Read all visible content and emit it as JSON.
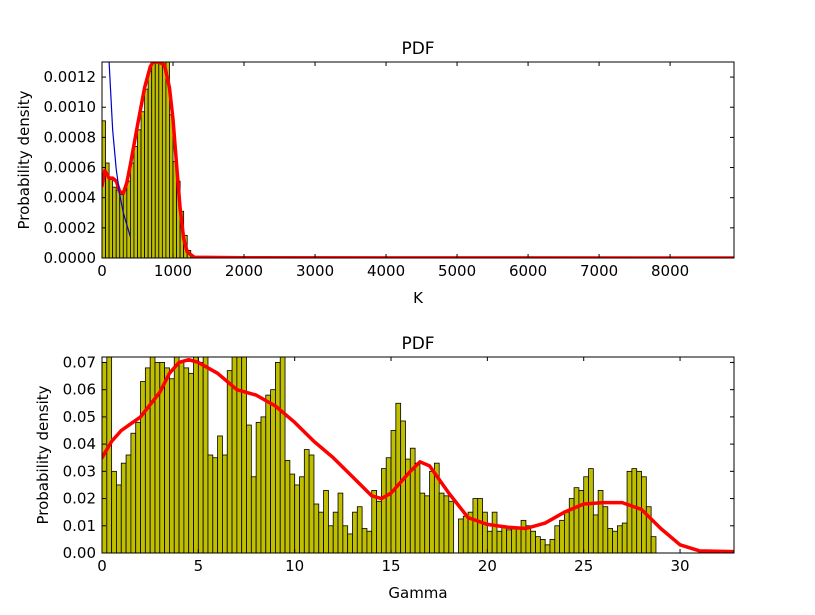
{
  "chart_data": [
    {
      "type": "bar",
      "title": "PDF",
      "xlabel": "K",
      "ylabel": "Probability density",
      "xlim": [
        0,
        8900
      ],
      "ylim": [
        0,
        0.0013
      ],
      "grid": false,
      "xticks": [
        "0",
        "1000",
        "2000",
        "3000",
        "4000",
        "5000",
        "6000",
        "7000",
        "8000"
      ],
      "yticks": [
        "0.0000",
        "0.0002",
        "0.0004",
        "0.0006",
        "0.0008",
        "0.0010",
        "0.0012"
      ],
      "bin_width": 50,
      "bar_color": "#bfbf00",
      "histogram": [
        {
          "x": 0,
          "v": 0.00091
        },
        {
          "x": 50,
          "v": 0.00063
        },
        {
          "x": 100,
          "v": 0.00052
        },
        {
          "x": 150,
          "v": 0.00047
        },
        {
          "x": 200,
          "v": 0.00045
        },
        {
          "x": 250,
          "v": 0.00042
        },
        {
          "x": 300,
          "v": 0.00045
        },
        {
          "x": 350,
          "v": 0.00051
        },
        {
          "x": 400,
          "v": 0.00063
        },
        {
          "x": 450,
          "v": 0.00074
        },
        {
          "x": 500,
          "v": 0.00085
        },
        {
          "x": 550,
          "v": 0.00097
        },
        {
          "x": 600,
          "v": 0.00112
        },
        {
          "x": 650,
          "v": 0.00124
        },
        {
          "x": 700,
          "v": 0.0013
        },
        {
          "x": 750,
          "v": 0.0013
        },
        {
          "x": 800,
          "v": 0.0013
        },
        {
          "x": 850,
          "v": 0.0013
        },
        {
          "x": 900,
          "v": 0.0013
        },
        {
          "x": 950,
          "v": 0.00095
        },
        {
          "x": 1000,
          "v": 0.00064
        },
        {
          "x": 1050,
          "v": 0.00051
        },
        {
          "x": 1100,
          "v": 0.00031
        },
        {
          "x": 1150,
          "v": 0.00015
        },
        {
          "x": 1200,
          "v": 5e-05
        },
        {
          "x": 1250,
          "v": 1e-05
        }
      ],
      "series": [
        {
          "color": "#ff0000",
          "points": [
            [
              0,
              0.00048
            ],
            [
              40,
              0.00058
            ],
            [
              100,
              0.00053
            ],
            [
              150,
              0.00053
            ],
            [
              200,
              0.00051
            ],
            [
              250,
              0.00044
            ],
            [
              300,
              0.00043
            ],
            [
              350,
              0.0005
            ],
            [
              400,
              0.00062
            ],
            [
              500,
              0.00088
            ],
            [
              600,
              0.00113
            ],
            [
              680,
              0.00127
            ],
            [
              720,
              0.0013
            ],
            [
              800,
              0.0013
            ],
            [
              880,
              0.00128
            ],
            [
              950,
              0.00113
            ],
            [
              1000,
              0.00092
            ],
            [
              1050,
              0.00062
            ],
            [
              1100,
              0.00033
            ],
            [
              1150,
              0.00013
            ],
            [
              1200,
              4e-05
            ],
            [
              1300,
              5e-06
            ],
            [
              2000,
              1.5e-06
            ],
            [
              8900,
              0.0
            ]
          ]
        },
        {
          "color": "#0000cc",
          "points": [
            [
              100,
              0.0013
            ],
            [
              120,
              0.00112
            ],
            [
              150,
              0.00085
            ],
            [
              200,
              0.00059
            ],
            [
              250,
              0.00042
            ],
            [
              300,
              0.0003
            ],
            [
              350,
              0.00022
            ],
            [
              400,
              0.00014
            ]
          ]
        }
      ]
    },
    {
      "type": "bar",
      "title": "PDF",
      "xlabel": "Gamma",
      "ylabel": "Probability density",
      "xlim": [
        0,
        32.8
      ],
      "ylim": [
        0,
        0.072
      ],
      "grid": false,
      "xticks": [
        "0",
        "5",
        "10",
        "15",
        "20",
        "25",
        "30"
      ],
      "yticks": [
        "0.00",
        "0.01",
        "0.02",
        "0.03",
        "0.04",
        "0.05",
        "0.06",
        "0.07"
      ],
      "bin_width": 0.25,
      "bar_color": "#bfbf00",
      "histogram_values": [
        0.07,
        0.072,
        0.03,
        0.025,
        0.033,
        0.036,
        0.044,
        0.048,
        0.063,
        0.068,
        0.072,
        0.07,
        0.07,
        0.068,
        0.064,
        0.072,
        0.07,
        0.068,
        0.066,
        0.072,
        0.07,
        0.072,
        0.036,
        0.035,
        0.043,
        0.036,
        0.067,
        0.072,
        0.072,
        0.072,
        0.047,
        0.028,
        0.048,
        0.05,
        0.058,
        0.06,
        0.07,
        0.072,
        0.034,
        0.029,
        0.025,
        0.028,
        0.038,
        0.036,
        0.018,
        0.015,
        0.023,
        0.01,
        0.015,
        0.022,
        0.01,
        0.007,
        0.015,
        0.017,
        0.009,
        0.008,
        0.023,
        0.019,
        0.031,
        0.035,
        0.045,
        0.055,
        0.0485,
        0.0345,
        0.0385,
        0.033,
        0.022,
        0.021,
        0.03,
        0.033,
        0.022,
        0.021,
        0.019,
        0.0,
        0.0125,
        0.0135,
        0.015,
        0.02,
        0.02,
        0.015,
        0.008,
        0.015,
        0.008,
        0.01,
        0.0085,
        0.0088,
        0.0095,
        0.012,
        0.01,
        0.008,
        0.006,
        0.005,
        0.003,
        0.005,
        0.01,
        0.012,
        0.015,
        0.02,
        0.024,
        0.023,
        0.028,
        0.031,
        0.014,
        0.023,
        0.017,
        0.009,
        0.008,
        0.01,
        0.011,
        0.03,
        0.031,
        0.03,
        0.028,
        0.017,
        0.006
      ],
      "histogram_start": 0,
      "series": [
        {
          "color": "#ff0000",
          "points": [
            [
              0,
              0.035
            ],
            [
              0.5,
              0.041
            ],
            [
              1,
              0.045
            ],
            [
              2,
              0.05
            ],
            [
              3,
              0.059
            ],
            [
              3.5,
              0.066
            ],
            [
              4,
              0.07
            ],
            [
              4.5,
              0.071
            ],
            [
              5,
              0.07
            ],
            [
              6,
              0.066
            ],
            [
              7,
              0.06
            ],
            [
              8,
              0.058
            ],
            [
              9,
              0.054
            ],
            [
              10,
              0.048
            ],
            [
              11,
              0.041
            ],
            [
              12,
              0.035
            ],
            [
              13,
              0.028
            ],
            [
              14,
              0.021
            ],
            [
              14.5,
              0.02
            ],
            [
              15,
              0.022
            ],
            [
              16,
              0.03
            ],
            [
              16.5,
              0.0335
            ],
            [
              17,
              0.032
            ],
            [
              18,
              0.022
            ],
            [
              19,
              0.013
            ],
            [
              20,
              0.0105
            ],
            [
              21,
              0.0095
            ],
            [
              22,
              0.009
            ],
            [
              23,
              0.011
            ],
            [
              24,
              0.015
            ],
            [
              25,
              0.018
            ],
            [
              26,
              0.0185
            ],
            [
              27,
              0.0185
            ],
            [
              28,
              0.016
            ],
            [
              29,
              0.009
            ],
            [
              30,
              0.003
            ],
            [
              31,
              0.0008
            ],
            [
              32.8,
              0.0005
            ]
          ]
        }
      ]
    }
  ]
}
